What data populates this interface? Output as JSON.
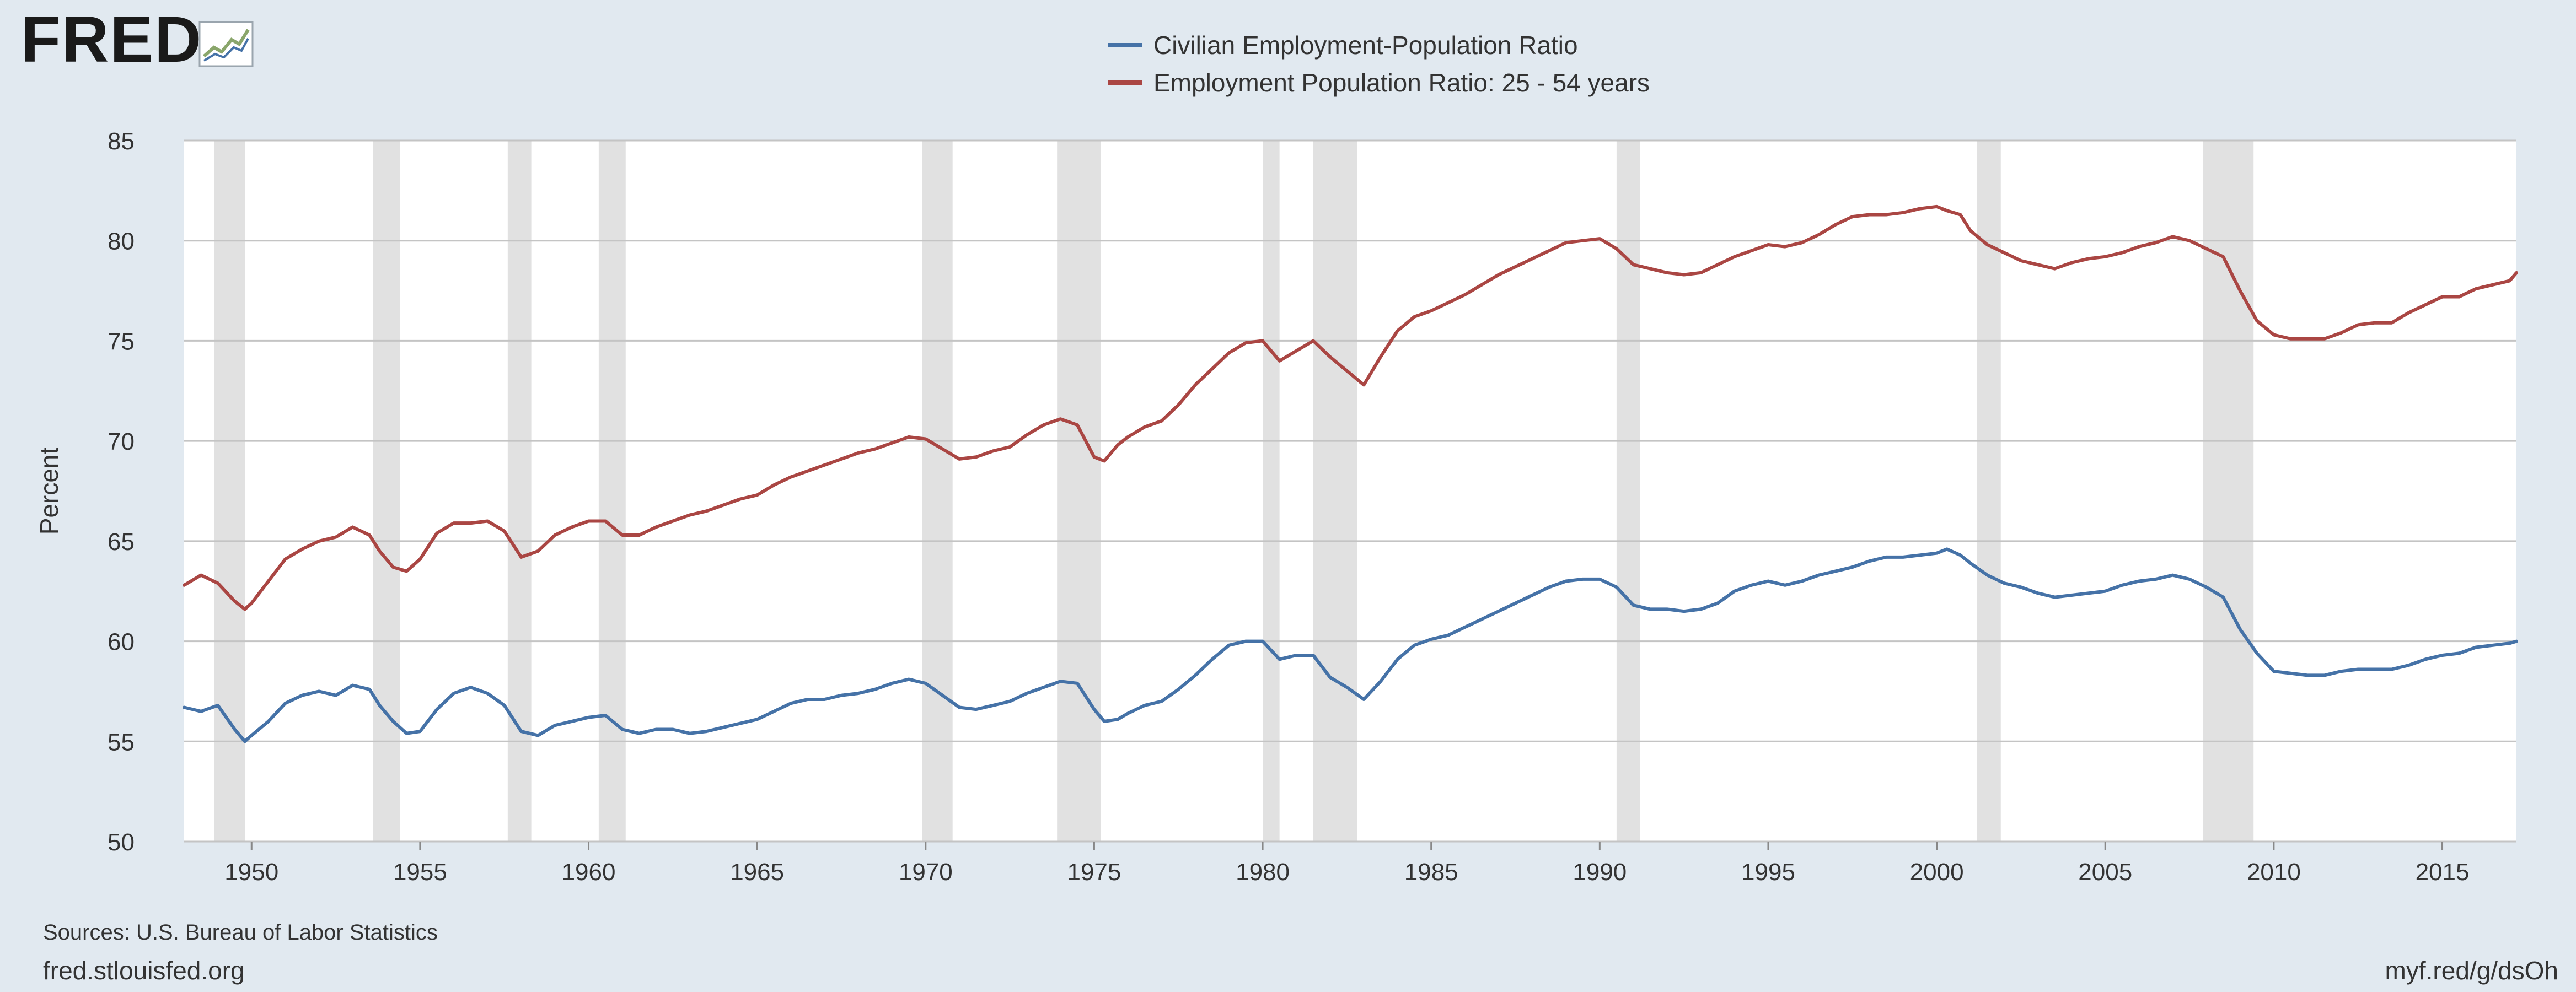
{
  "branding": {
    "logo_text": "FRED",
    "logo_icon": "sparkline-icon",
    "brand_color": "#1a1a1a"
  },
  "footer": {
    "sources": "Sources: U.S. Bureau of Labor Statistics",
    "site": "fred.stlouisfed.org",
    "short_link": "myf.red/g/dsOh"
  },
  "chart_data": {
    "type": "line",
    "title": "",
    "xlabel": "",
    "ylabel": "Percent",
    "xlim": [
      1948.0,
      2017.2
    ],
    "ylim": [
      50,
      85
    ],
    "yticks": [
      50,
      55,
      60,
      65,
      70,
      75,
      80,
      85
    ],
    "xticks": [
      1950,
      1955,
      1960,
      1965,
      1970,
      1975,
      1980,
      1985,
      1990,
      1995,
      2000,
      2005,
      2010,
      2015
    ],
    "grid": true,
    "legend_position": "top-center",
    "recessions": [
      [
        1948.9,
        1949.8
      ],
      [
        1953.6,
        1954.4
      ],
      [
        1957.6,
        1958.3
      ],
      [
        1960.3,
        1961.1
      ],
      [
        1969.9,
        1970.8
      ],
      [
        1973.9,
        1975.2
      ],
      [
        1980.0,
        1980.5
      ],
      [
        1981.5,
        1982.8
      ],
      [
        1990.5,
        1991.2
      ],
      [
        2001.2,
        2001.9
      ],
      [
        2007.9,
        2009.4
      ]
    ],
    "colors": {
      "plot_bg": "#ffffff",
      "page_bg": "#e1e9f0",
      "grid": "#c4c4c4",
      "recession": "#e1e1e1"
    },
    "series": [
      {
        "name": "Civilian Employment-Population Ratio",
        "color": "#4572a7",
        "x": [
          1948.0,
          1948.5,
          1949.0,
          1949.5,
          1949.8,
          1950.0,
          1950.5,
          1951.0,
          1951.5,
          1952.0,
          1952.5,
          1953.0,
          1953.5,
          1953.8,
          1954.2,
          1954.6,
          1955.0,
          1955.5,
          1956.0,
          1956.5,
          1957.0,
          1957.5,
          1958.0,
          1958.5,
          1959.0,
          1959.5,
          1960.0,
          1960.5,
          1961.0,
          1961.5,
          1962.0,
          1962.5,
          1963.0,
          1963.5,
          1964.0,
          1964.5,
          1965.0,
          1965.5,
          1966.0,
          1966.5,
          1967.0,
          1967.5,
          1968.0,
          1968.5,
          1969.0,
          1969.5,
          1970.0,
          1970.5,
          1971.0,
          1971.5,
          1972.0,
          1972.5,
          1973.0,
          1973.5,
          1974.0,
          1974.5,
          1975.0,
          1975.3,
          1975.7,
          1976.0,
          1976.5,
          1977.0,
          1977.5,
          1978.0,
          1978.5,
          1979.0,
          1979.5,
          1980.0,
          1980.5,
          1981.0,
          1981.5,
          1982.0,
          1982.5,
          1983.0,
          1983.5,
          1984.0,
          1984.5,
          1985.0,
          1985.5,
          1986.0,
          1986.5,
          1987.0,
          1987.5,
          1988.0,
          1988.5,
          1989.0,
          1989.5,
          1990.0,
          1990.5,
          1991.0,
          1991.5,
          1992.0,
          1992.5,
          1993.0,
          1993.5,
          1994.0,
          1994.5,
          1995.0,
          1995.5,
          1996.0,
          1996.5,
          1997.0,
          1997.5,
          1998.0,
          1998.5,
          1999.0,
          1999.5,
          2000.0,
          2000.3,
          2000.7,
          2001.0,
          2001.5,
          2002.0,
          2002.5,
          2003.0,
          2003.5,
          2004.0,
          2004.5,
          2005.0,
          2005.5,
          2006.0,
          2006.5,
          2007.0,
          2007.5,
          2008.0,
          2008.5,
          2009.0,
          2009.5,
          2010.0,
          2010.5,
          2011.0,
          2011.5,
          2012.0,
          2012.5,
          2013.0,
          2013.5,
          2014.0,
          2014.5,
          2015.0,
          2015.5,
          2016.0,
          2016.5,
          2017.0,
          2017.2
        ],
        "values": [
          56.7,
          56.5,
          56.8,
          55.6,
          55.0,
          55.3,
          56.0,
          56.9,
          57.3,
          57.5,
          57.3,
          57.8,
          57.6,
          56.8,
          56.0,
          55.4,
          55.5,
          56.6,
          57.4,
          57.7,
          57.4,
          56.8,
          55.5,
          55.3,
          55.8,
          56.0,
          56.2,
          56.3,
          55.6,
          55.4,
          55.6,
          55.6,
          55.4,
          55.5,
          55.7,
          55.9,
          56.1,
          56.5,
          56.9,
          57.1,
          57.1,
          57.3,
          57.4,
          57.6,
          57.9,
          58.1,
          57.9,
          57.3,
          56.7,
          56.6,
          56.8,
          57.0,
          57.4,
          57.7,
          58.0,
          57.9,
          56.6,
          56.0,
          56.1,
          56.4,
          56.8,
          57.0,
          57.6,
          58.3,
          59.1,
          59.8,
          60.0,
          60.0,
          59.1,
          59.3,
          59.3,
          58.2,
          57.7,
          57.1,
          58.0,
          59.1,
          59.8,
          60.1,
          60.3,
          60.7,
          61.1,
          61.5,
          61.9,
          62.3,
          62.7,
          63.0,
          63.1,
          63.1,
          62.7,
          61.8,
          61.6,
          61.6,
          61.5,
          61.6,
          61.9,
          62.5,
          62.8,
          63.0,
          62.8,
          63.0,
          63.3,
          63.5,
          63.7,
          64.0,
          64.2,
          64.2,
          64.3,
          64.4,
          64.6,
          64.3,
          63.9,
          63.3,
          62.9,
          62.7,
          62.4,
          62.2,
          62.3,
          62.4,
          62.5,
          62.8,
          63.0,
          63.1,
          63.3,
          63.1,
          62.7,
          62.2,
          60.6,
          59.4,
          58.5,
          58.4,
          58.3,
          58.3,
          58.5,
          58.6,
          58.6,
          58.6,
          58.8,
          59.1,
          59.3,
          59.4,
          59.7,
          59.8,
          59.9,
          60.0
        ]
      },
      {
        "name": "Employment Population Ratio: 25 - 54 years",
        "color": "#aa4643",
        "x": [
          1948.0,
          1948.5,
          1949.0,
          1949.5,
          1949.8,
          1950.0,
          1950.5,
          1951.0,
          1951.5,
          1952.0,
          1952.5,
          1953.0,
          1953.5,
          1953.8,
          1954.2,
          1954.6,
          1955.0,
          1955.5,
          1956.0,
          1956.5,
          1957.0,
          1957.5,
          1958.0,
          1958.5,
          1959.0,
          1959.5,
          1960.0,
          1960.5,
          1961.0,
          1961.5,
          1962.0,
          1962.5,
          1963.0,
          1963.5,
          1964.0,
          1964.5,
          1965.0,
          1965.5,
          1966.0,
          1966.5,
          1967.0,
          1967.5,
          1968.0,
          1968.5,
          1969.0,
          1969.5,
          1970.0,
          1970.5,
          1971.0,
          1971.5,
          1972.0,
          1972.5,
          1973.0,
          1973.5,
          1974.0,
          1974.5,
          1975.0,
          1975.3,
          1975.7,
          1976.0,
          1976.5,
          1977.0,
          1977.5,
          1978.0,
          1978.5,
          1979.0,
          1979.5,
          1980.0,
          1980.5,
          1981.0,
          1981.5,
          1982.0,
          1982.5,
          1983.0,
          1983.5,
          1984.0,
          1984.5,
          1985.0,
          1985.5,
          1986.0,
          1986.5,
          1987.0,
          1987.5,
          1988.0,
          1988.5,
          1989.0,
          1989.5,
          1990.0,
          1990.5,
          1991.0,
          1991.5,
          1992.0,
          1992.5,
          1993.0,
          1993.5,
          1994.0,
          1994.5,
          1995.0,
          1995.5,
          1996.0,
          1996.5,
          1997.0,
          1997.5,
          1998.0,
          1998.5,
          1999.0,
          1999.5,
          2000.0,
          2000.3,
          2000.7,
          2001.0,
          2001.5,
          2002.0,
          2002.5,
          2003.0,
          2003.5,
          2004.0,
          2004.5,
          2005.0,
          2005.5,
          2006.0,
          2006.5,
          2007.0,
          2007.5,
          2008.0,
          2008.5,
          2009.0,
          2009.5,
          2010.0,
          2010.5,
          2011.0,
          2011.5,
          2012.0,
          2012.5,
          2013.0,
          2013.5,
          2014.0,
          2014.5,
          2015.0,
          2015.5,
          2016.0,
          2016.5,
          2017.0,
          2017.2
        ],
        "values": [
          62.8,
          63.3,
          62.9,
          62.0,
          61.6,
          61.9,
          63.0,
          64.1,
          64.6,
          65.0,
          65.2,
          65.7,
          65.3,
          64.5,
          63.7,
          63.5,
          64.1,
          65.4,
          65.9,
          65.9,
          66.0,
          65.5,
          64.2,
          64.5,
          65.3,
          65.7,
          66.0,
          66.0,
          65.3,
          65.3,
          65.7,
          66.0,
          66.3,
          66.5,
          66.8,
          67.1,
          67.3,
          67.8,
          68.2,
          68.5,
          68.8,
          69.1,
          69.4,
          69.6,
          69.9,
          70.2,
          70.1,
          69.6,
          69.1,
          69.2,
          69.5,
          69.7,
          70.3,
          70.8,
          71.1,
          70.8,
          69.2,
          69.0,
          69.8,
          70.2,
          70.7,
          71.0,
          71.8,
          72.8,
          73.6,
          74.4,
          74.9,
          75.0,
          74.0,
          74.5,
          75.0,
          74.2,
          73.5,
          72.8,
          74.2,
          75.5,
          76.2,
          76.5,
          76.9,
          77.3,
          77.8,
          78.3,
          78.7,
          79.1,
          79.5,
          79.9,
          80.0,
          80.1,
          79.6,
          78.8,
          78.6,
          78.4,
          78.3,
          78.4,
          78.8,
          79.2,
          79.5,
          79.8,
          79.7,
          79.9,
          80.3,
          80.8,
          81.2,
          81.3,
          81.3,
          81.4,
          81.6,
          81.7,
          81.5,
          81.3,
          80.5,
          79.8,
          79.4,
          79.0,
          78.8,
          78.6,
          78.9,
          79.1,
          79.2,
          79.4,
          79.7,
          79.9,
          80.2,
          80.0,
          79.6,
          79.2,
          77.5,
          76.0,
          75.3,
          75.1,
          75.1,
          75.1,
          75.4,
          75.8,
          75.9,
          75.9,
          76.4,
          76.8,
          77.2,
          77.2,
          77.6,
          77.8,
          78.0,
          78.4
        ]
      }
    ]
  }
}
